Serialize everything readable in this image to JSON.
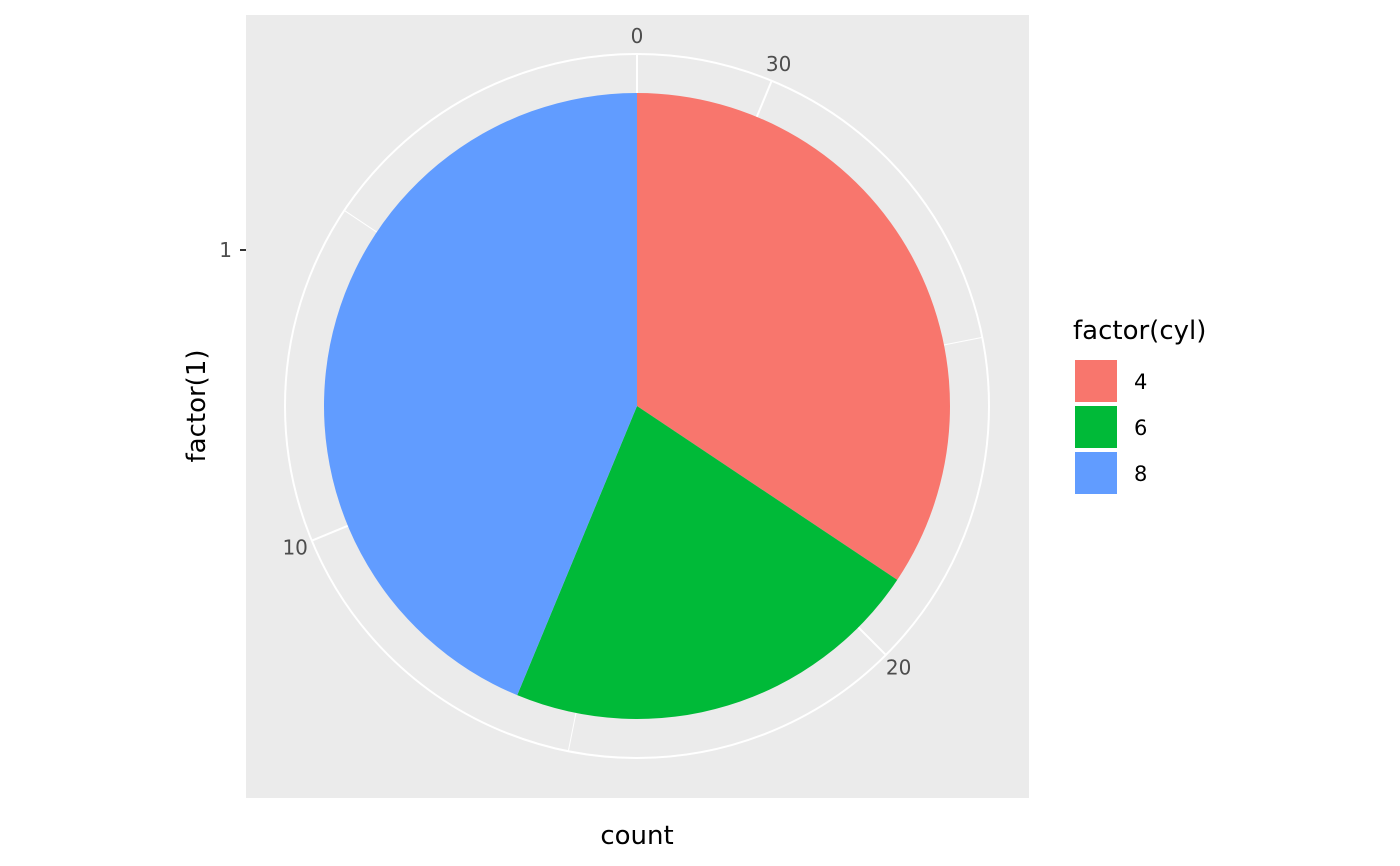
{
  "chart_data": {
    "type": "pie",
    "coord": "polar",
    "categories": [
      "4",
      "6",
      "8"
    ],
    "values": [
      11,
      7,
      14
    ],
    "colors": [
      "#F8766D",
      "#00BA38",
      "#619CFF"
    ],
    "theta_ticks": [
      0,
      10,
      20,
      30
    ],
    "theta_range": [
      0,
      32
    ],
    "x_tick_labels": [
      "1"
    ],
    "xlabel": "count",
    "ylabel": "factor(1)",
    "legend": {
      "title": "factor(cyl)",
      "position": "right"
    },
    "panel_background": "#EBEBEB",
    "grid": true
  }
}
